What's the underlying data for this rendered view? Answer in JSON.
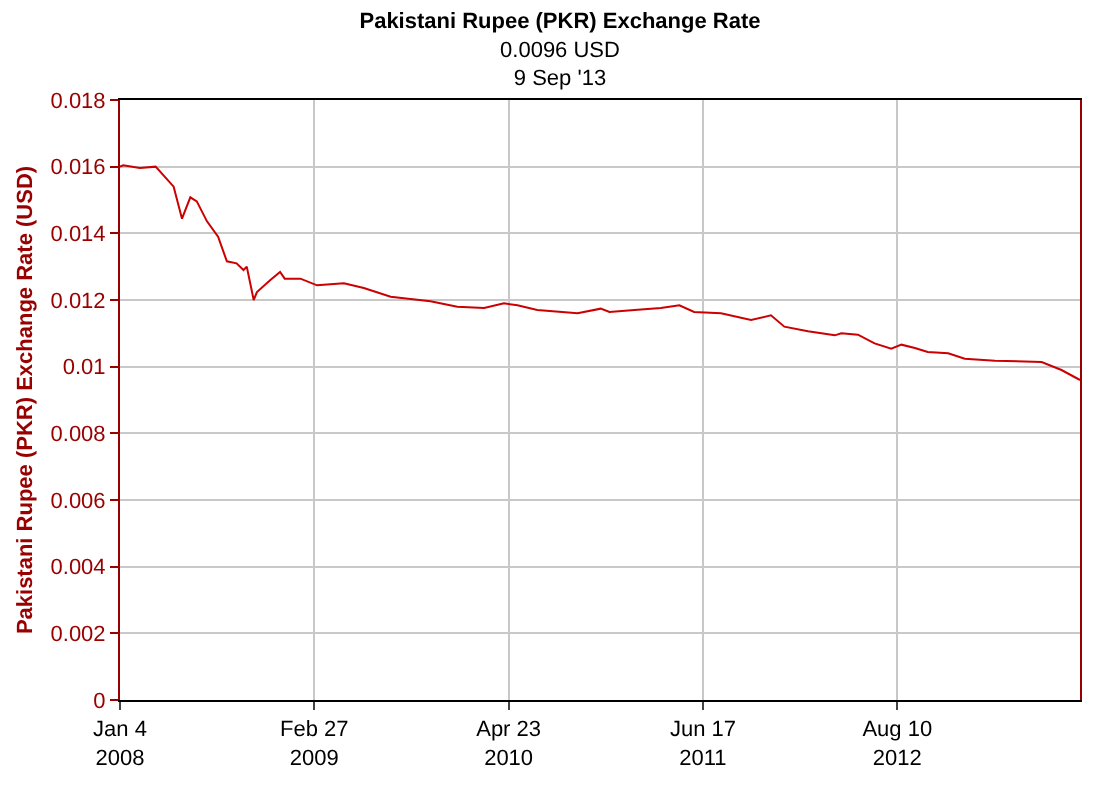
{
  "chart_data": {
    "type": "line",
    "title": "Pakistani Rupee (PKR) Exchange Rate",
    "subtitle": "0.0096 USD\n9 Sep '13",
    "ylabel": "Pakistani Rupee (PKR) Exchange Rate (USD)",
    "x": [
      "2008-01-04",
      "2008-01-11",
      "2008-02-16",
      "2008-03-21",
      "2008-04-29",
      "2008-05-17",
      "2008-06-04",
      "2008-06-18",
      "2008-07-10",
      "2008-08-03",
      "2008-08-22",
      "2008-09-12",
      "2008-09-27",
      "2008-10-04",
      "2008-10-19",
      "2008-10-26",
      "2008-11-24",
      "2008-12-15",
      "2008-12-25",
      "2009-01-28",
      "2009-03-05",
      "2009-05-02",
      "2009-06-14",
      "2009-08-11",
      "2009-11-05",
      "2010-01-02",
      "2010-03-01",
      "2010-04-13",
      "2010-05-12",
      "2010-06-24",
      "2010-09-19",
      "2010-11-08",
      "2010-11-27",
      "2011-01-20",
      "2011-03-18",
      "2011-04-27",
      "2011-05-29",
      "2011-07-26",
      "2011-09-29",
      "2011-11-11",
      "2011-12-10",
      "2012-01-30",
      "2012-03-28",
      "2012-04-11",
      "2012-05-17",
      "2012-06-22",
      "2012-07-28",
      "2012-08-19",
      "2012-09-17",
      "2012-10-15",
      "2012-11-28",
      "2013-01-03",
      "2013-03-09",
      "2013-06-18",
      "2013-07-31",
      "2013-09-09"
    ],
    "series": [
      {
        "color": "#cc0000",
        "values": [
          0.016,
          0.01604,
          0.01596,
          0.016,
          0.0154,
          0.01444,
          0.01508,
          0.01496,
          0.01436,
          0.0139,
          0.01316,
          0.0131,
          0.0129,
          0.013,
          0.012,
          0.01224,
          0.0126,
          0.01284,
          0.01264,
          0.01264,
          0.01244,
          0.0125,
          0.01236,
          0.0121,
          0.01196,
          0.0118,
          0.01176,
          0.0119,
          0.01184,
          0.0117,
          0.0116,
          0.01174,
          0.01164,
          0.0117,
          0.01176,
          0.01184,
          0.01164,
          0.0116,
          0.0114,
          0.01154,
          0.0112,
          0.01106,
          0.01094,
          0.011,
          0.01096,
          0.0107,
          0.01054,
          0.01066,
          0.01056,
          0.01044,
          0.0104,
          0.01024,
          0.01018,
          0.01014,
          0.0099,
          0.0096
        ]
      }
    ],
    "xlim": [
      "2008-01-04",
      "2013-09-09"
    ],
    "xticks": [
      {
        "value": "2008-01-04",
        "label": "Jan 4\n2008"
      },
      {
        "value": "2009-02-27",
        "label": "Feb 27\n2009"
      },
      {
        "value": "2010-04-23",
        "label": "Apr 23\n2010"
      },
      {
        "value": "2011-06-17",
        "label": "Jun 17\n2011"
      },
      {
        "value": "2012-08-10",
        "label": "Aug 10\n2012"
      }
    ],
    "ylim": [
      0,
      0.018
    ],
    "yticks": [
      0,
      0.002,
      0.004,
      0.006,
      0.008,
      0.01,
      0.012,
      0.014,
      0.016,
      0.018
    ],
    "grid": true,
    "marker": "none",
    "line_style": "solid"
  }
}
